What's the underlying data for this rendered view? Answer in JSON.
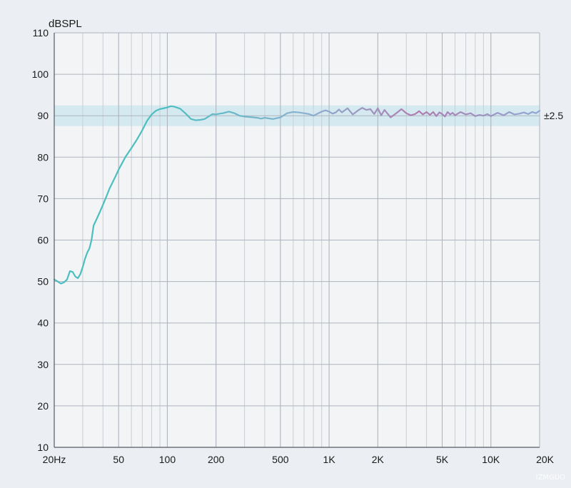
{
  "chart_data": {
    "type": "line",
    "ylabel": "dBSPL",
    "ylim": [
      10,
      110
    ],
    "y_ticks": [
      10,
      20,
      30,
      40,
      50,
      60,
      70,
      80,
      90,
      100,
      110
    ],
    "x_scale": "log",
    "xlim": [
      20,
      20000
    ],
    "x_tick_values": [
      20,
      50,
      100,
      200,
      500,
      1000,
      2000,
      5000,
      10000,
      20000
    ],
    "x_tick_labels": [
      "20Hz",
      "50",
      "100",
      "200",
      "500",
      "1K",
      "2K",
      "5K",
      "10K",
      "20K"
    ],
    "tolerance_band": {
      "center": 90,
      "halfwidth": 2.5,
      "label": "±2.5"
    },
    "grid": true,
    "colors": {
      "background": "#ebeef2",
      "plot_background": "#f3f4f6",
      "grid_major": "#aeb4bd",
      "grid_minor": "#c9ced5",
      "band": "#cfe7ef",
      "curve_low": "#4bbfbf",
      "curve_mid": "#8ab0d0",
      "curve_high": "#b07cb0"
    },
    "series": [
      {
        "x": [
          20,
          21,
          22,
          23,
          24,
          25,
          26,
          27,
          28,
          29,
          30,
          31,
          32,
          33,
          34,
          35,
          36,
          38,
          40,
          42,
          44,
          46,
          48,
          50,
          55,
          60,
          65,
          70,
          75,
          80,
          85,
          90,
          95,
          100,
          105,
          110,
          120,
          130,
          140,
          150,
          160,
          170,
          180,
          190,
          200,
          210,
          220,
          240,
          260,
          280,
          300,
          320,
          340,
          360,
          380,
          400,
          450,
          500,
          550,
          600,
          650,
          700,
          750,
          800,
          850,
          900,
          950,
          1000,
          1050,
          1100,
          1150,
          1200,
          1300,
          1400,
          1500,
          1600,
          1700,
          1800,
          1900,
          2000,
          2100,
          2200,
          2400,
          2600,
          2800,
          3000,
          3200,
          3400,
          3600,
          3800,
          4000,
          4200,
          4400,
          4600,
          4800,
          5000,
          5200,
          5400,
          5600,
          5800,
          6000,
          6500,
          7000,
          7500,
          8000,
          8500,
          9000,
          9500,
          10000,
          11000,
          12000,
          13000,
          14000,
          15000,
          16000,
          17000,
          18000,
          19000,
          20000
        ],
        "y": [
          50.5,
          50.0,
          49.5,
          49.8,
          50.5,
          52.5,
          52.3,
          51.2,
          50.8,
          51.8,
          53.5,
          55.5,
          57.0,
          58.0,
          60.0,
          63.5,
          64.5,
          66.5,
          68.5,
          70.5,
          72.5,
          74.0,
          75.5,
          77.0,
          80.0,
          82.2,
          84.3,
          86.5,
          88.8,
          90.3,
          91.2,
          91.6,
          91.8,
          92.0,
          92.3,
          92.2,
          91.7,
          90.5,
          89.2,
          88.9,
          89.0,
          89.2,
          89.8,
          90.4,
          90.3,
          90.5,
          90.6,
          91.0,
          90.6,
          90.0,
          89.8,
          89.7,
          89.6,
          89.5,
          89.3,
          89.5,
          89.2,
          89.6,
          90.6,
          90.9,
          90.8,
          90.6,
          90.4,
          90.0,
          90.5,
          91.0,
          91.3,
          91.0,
          90.5,
          90.8,
          91.5,
          90.8,
          91.8,
          90.3,
          91.2,
          91.9,
          91.4,
          91.6,
          90.4,
          91.8,
          90.1,
          91.4,
          89.6,
          90.6,
          91.6,
          90.6,
          90.1,
          90.4,
          91.1,
          90.3,
          90.9,
          90.2,
          90.9,
          89.9,
          90.8,
          90.4,
          89.8,
          90.9,
          90.3,
          90.7,
          90.1,
          90.9,
          90.3,
          90.6,
          89.9,
          90.2,
          90.0,
          90.4,
          89.9,
          90.7,
          90.1,
          90.9,
          90.3,
          90.5,
          90.8,
          90.4,
          90.9,
          90.6,
          91.2
        ]
      }
    ]
  },
  "watermark": "IZMGUO"
}
